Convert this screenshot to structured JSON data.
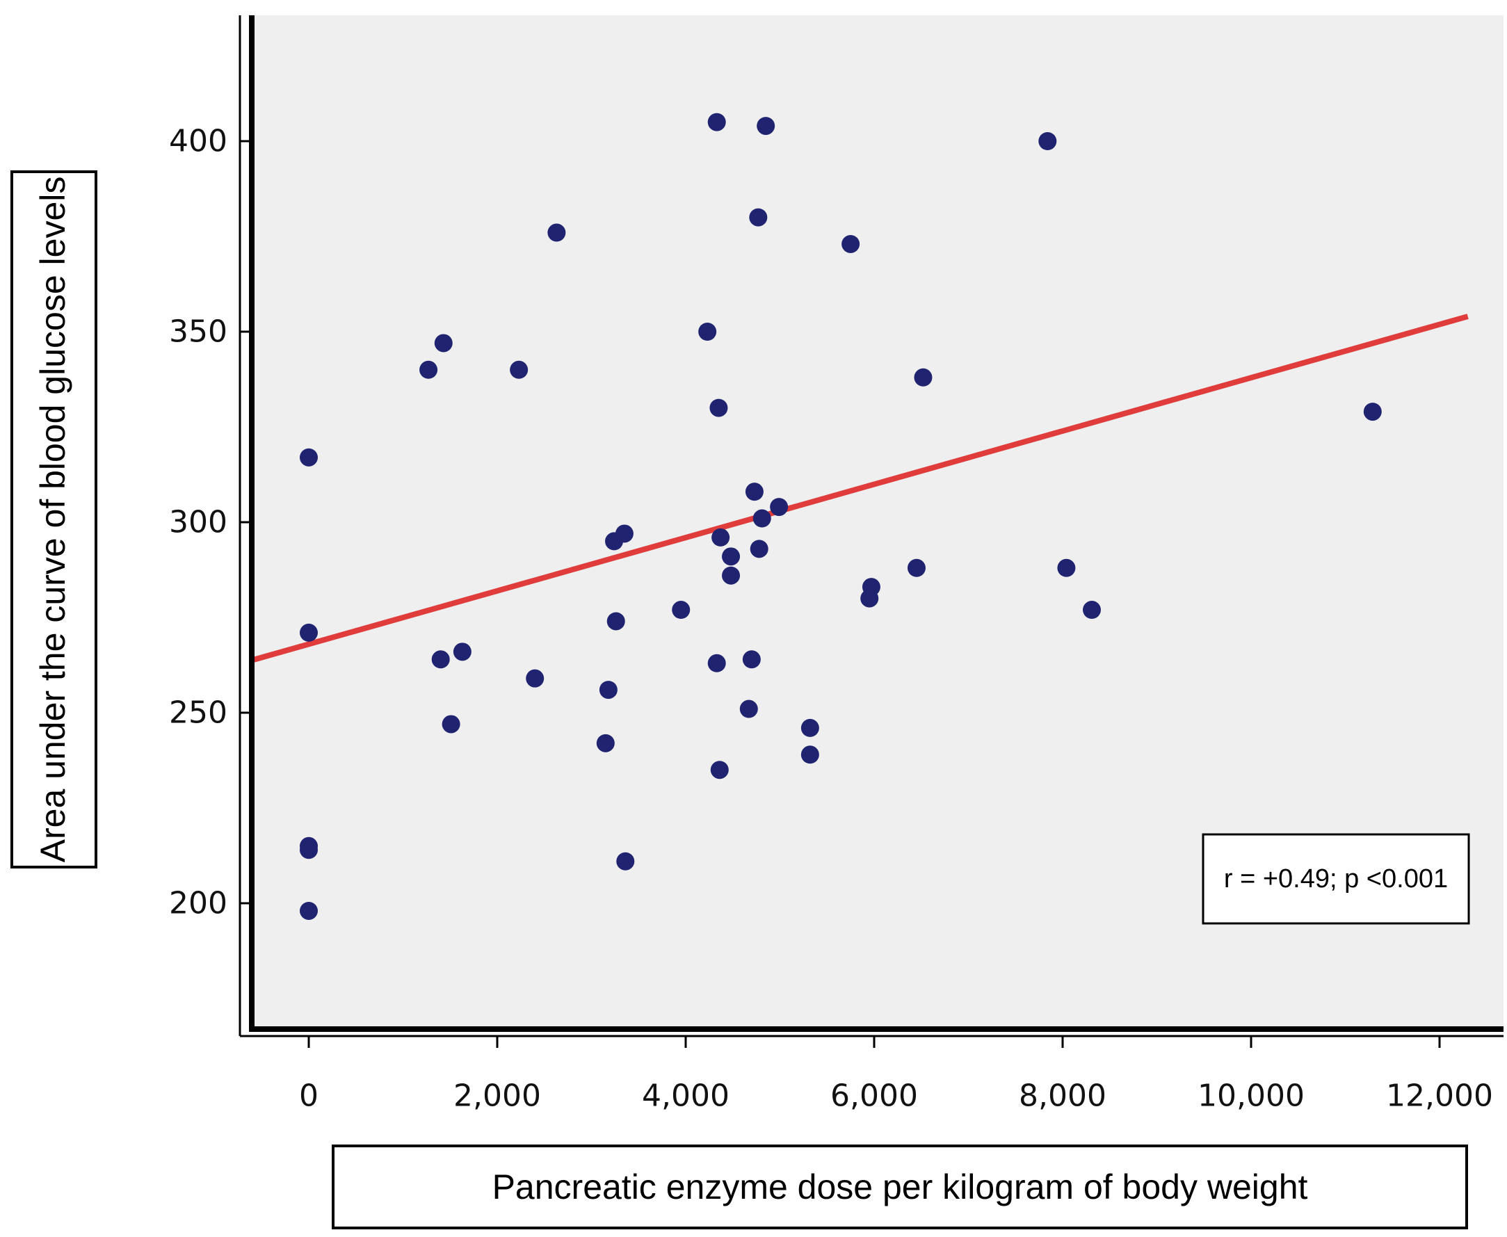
{
  "chart_data": {
    "type": "scatter",
    "title": "",
    "xlabel": "Pancreatic enzyme dose per kilogram of body weight",
    "ylabel": "Area under the curve of blood glucose levels",
    "xlim": [
      -1000,
      12300
    ],
    "ylim": [
      170,
      435
    ],
    "x_ticks": [
      0,
      2000,
      4000,
      6000,
      8000,
      10000,
      12000
    ],
    "x_tick_labels": [
      "0",
      "2,000",
      "4,000",
      "6,000",
      "8,000",
      "10,000",
      "12,000"
    ],
    "y_ticks": [
      200,
      250,
      300,
      350,
      400
    ],
    "y_tick_labels": [
      "200",
      "250",
      "300",
      "350",
      "400"
    ],
    "grid": false,
    "colors": {
      "point": "#1f2370",
      "fit_line": "#e03c3c",
      "plot_bg": "#efefef"
    },
    "points": [
      {
        "x": 0,
        "y": 317
      },
      {
        "x": 0,
        "y": 271
      },
      {
        "x": 0,
        "y": 215
      },
      {
        "x": 0,
        "y": 214
      },
      {
        "x": 0,
        "y": 198
      },
      {
        "x": 1270,
        "y": 340
      },
      {
        "x": 1430,
        "y": 347
      },
      {
        "x": 1400,
        "y": 264
      },
      {
        "x": 1510,
        "y": 247
      },
      {
        "x": 1630,
        "y": 266
      },
      {
        "x": 2230,
        "y": 340
      },
      {
        "x": 2400,
        "y": 259
      },
      {
        "x": 2630,
        "y": 376
      },
      {
        "x": 3150,
        "y": 242
      },
      {
        "x": 3180,
        "y": 256
      },
      {
        "x": 3240,
        "y": 295
      },
      {
        "x": 3260,
        "y": 274
      },
      {
        "x": 3350,
        "y": 297
      },
      {
        "x": 3360,
        "y": 211
      },
      {
        "x": 3950,
        "y": 277
      },
      {
        "x": 4230,
        "y": 350
      },
      {
        "x": 4330,
        "y": 405
      },
      {
        "x": 4330,
        "y": 263
      },
      {
        "x": 4350,
        "y": 330
      },
      {
        "x": 4360,
        "y": 235
      },
      {
        "x": 4370,
        "y": 296
      },
      {
        "x": 4480,
        "y": 291
      },
      {
        "x": 4480,
        "y": 286
      },
      {
        "x": 4670,
        "y": 251
      },
      {
        "x": 4700,
        "y": 264
      },
      {
        "x": 4730,
        "y": 308
      },
      {
        "x": 4770,
        "y": 380
      },
      {
        "x": 4780,
        "y": 293
      },
      {
        "x": 4810,
        "y": 301
      },
      {
        "x": 4850,
        "y": 404
      },
      {
        "x": 4990,
        "y": 304
      },
      {
        "x": 5320,
        "y": 246
      },
      {
        "x": 5320,
        "y": 239
      },
      {
        "x": 5750,
        "y": 373
      },
      {
        "x": 5950,
        "y": 280
      },
      {
        "x": 5970,
        "y": 283
      },
      {
        "x": 6450,
        "y": 288
      },
      {
        "x": 6520,
        "y": 338
      },
      {
        "x": 7840,
        "y": 400
      },
      {
        "x": 8040,
        "y": 288
      },
      {
        "x": 8310,
        "y": 277
      },
      {
        "x": 11290,
        "y": 329
      }
    ],
    "fit_line": {
      "x": [
        -1000,
        12300
      ],
      "y": [
        261,
        354
      ]
    },
    "annotation": "r = +0.49; p <0.001"
  }
}
